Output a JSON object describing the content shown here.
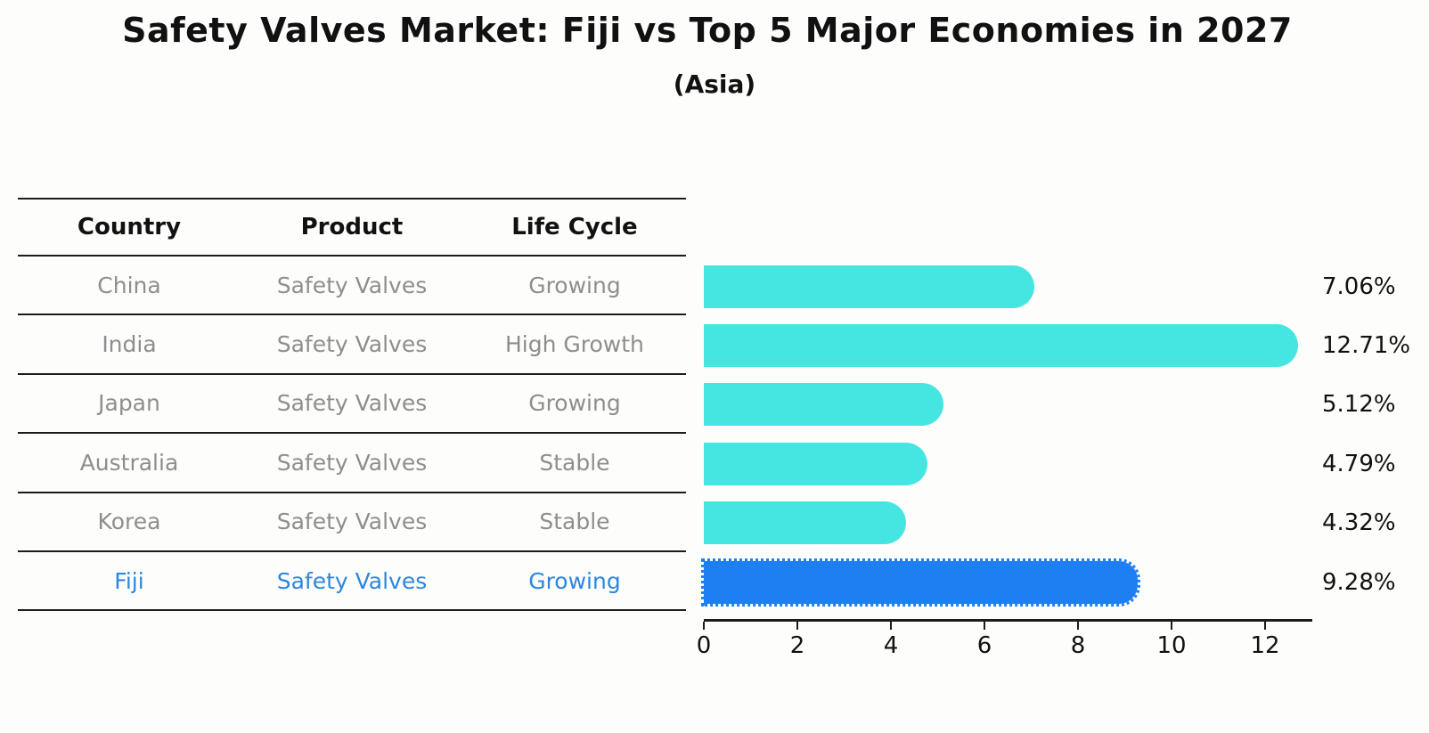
{
  "title": "Safety Valves Market: Fiji vs Top 5 Major Economies in 2027",
  "subtitle": "(Asia)",
  "table": {
    "headers": [
      "Country",
      "Product",
      "Life Cycle"
    ],
    "rows": [
      {
        "country": "China",
        "product": "Safety Valves",
        "life_cycle": "Growing",
        "highlight": false
      },
      {
        "country": "India",
        "product": "Safety Valves",
        "life_cycle": "High Growth",
        "highlight": false
      },
      {
        "country": "Japan",
        "product": "Safety Valves",
        "life_cycle": "Growing",
        "highlight": false
      },
      {
        "country": "Australia",
        "product": "Safety Valves",
        "life_cycle": "Stable",
        "highlight": false
      },
      {
        "country": "Korea",
        "product": "Safety Valves",
        "life_cycle": "Stable",
        "highlight": false
      },
      {
        "country": "Fiji",
        "product": "Safety Valves",
        "life_cycle": "Growing",
        "highlight": true
      }
    ]
  },
  "chart_data": {
    "type": "bar",
    "orientation": "horizontal",
    "title": "Safety Valves Market: Fiji vs Top 5 Major Economies in 2027",
    "subtitle": "(Asia)",
    "categories": [
      "China",
      "India",
      "Japan",
      "Australia",
      "Korea",
      "Fiji"
    ],
    "values": [
      7.06,
      12.71,
      5.12,
      4.79,
      4.32,
      9.28
    ],
    "value_labels": [
      "7.06%",
      "12.71%",
      "5.12%",
      "4.79%",
      "4.32%",
      "9.28%"
    ],
    "unit": "%",
    "x_ticks": [
      0,
      2,
      4,
      6,
      8,
      10,
      12
    ],
    "xlim": [
      0,
      13.0
    ],
    "grid": false,
    "legend": false,
    "highlight_index": 5,
    "colors": {
      "bar": "#45E6E2",
      "highlight_bar": "#1E7FF2",
      "highlight_text": "#2E86DE",
      "text": "#111111",
      "muted_text": "#8E8E8E",
      "line": "#1C1C1C"
    }
  }
}
